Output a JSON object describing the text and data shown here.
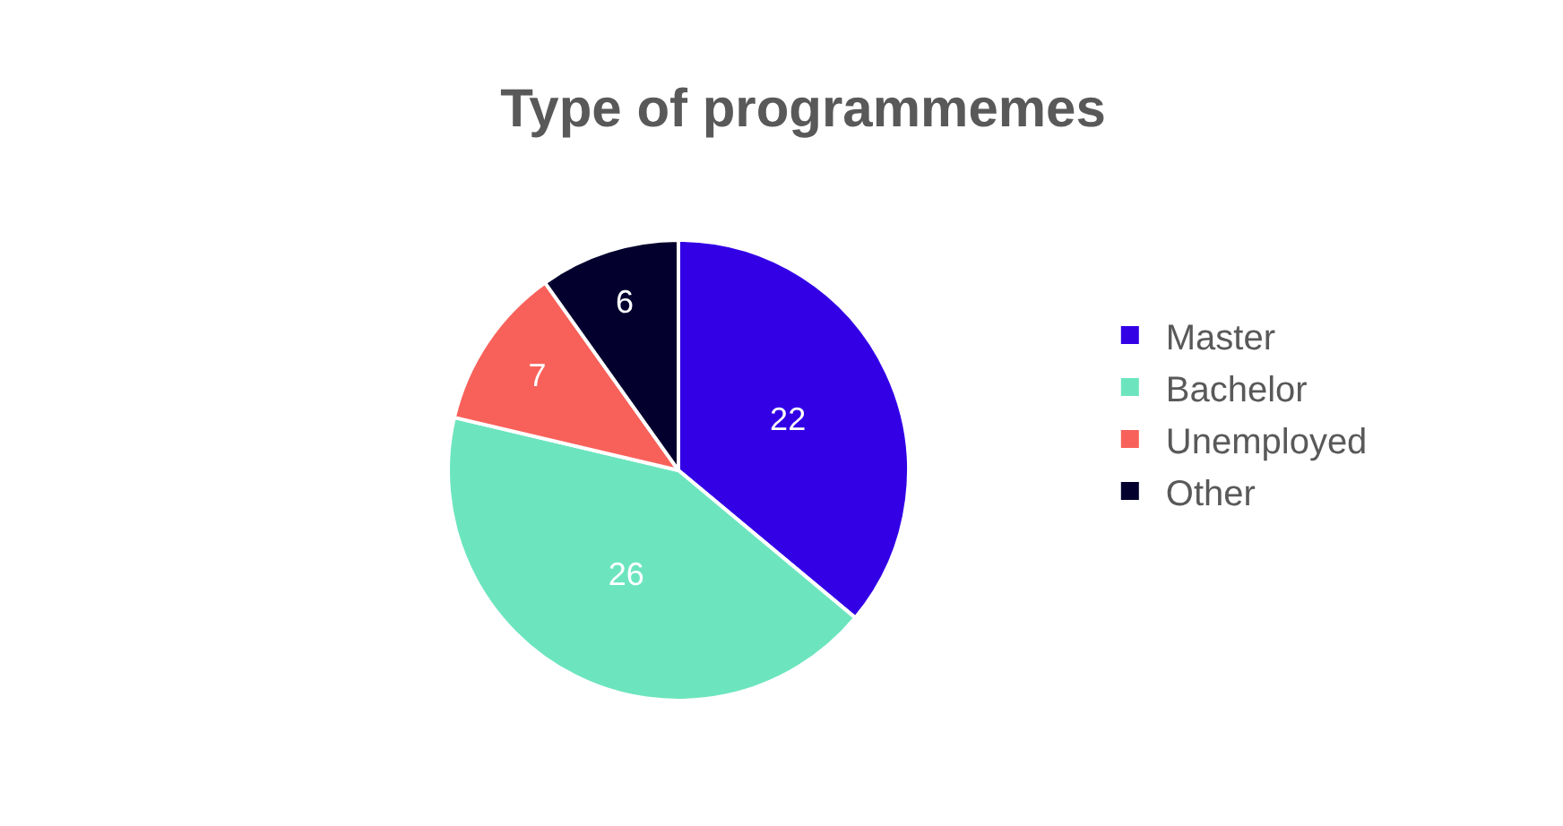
{
  "chart_data": {
    "type": "pie",
    "title": "Type of programmemes",
    "categories": [
      "Master",
      "Bachelor",
      "Unemployed",
      "Other"
    ],
    "values": [
      22,
      26,
      7,
      6
    ],
    "colors": [
      "#3300e6",
      "#6ce5be",
      "#f8615a",
      "#03002e"
    ],
    "data_labels": true,
    "legend": "right"
  }
}
